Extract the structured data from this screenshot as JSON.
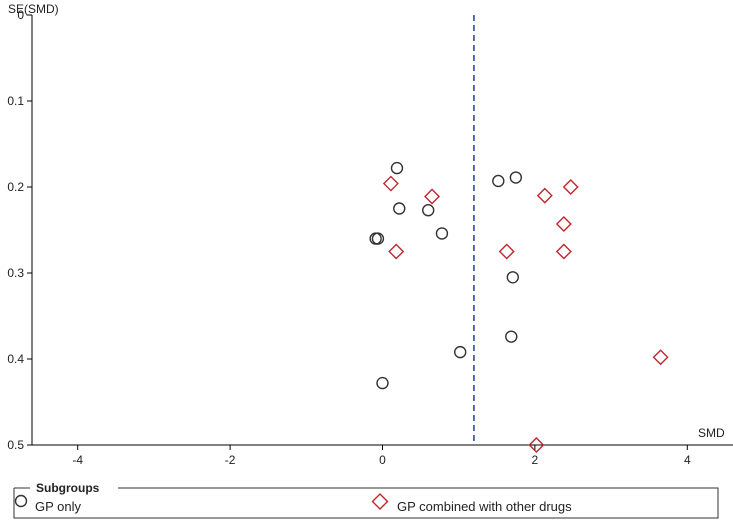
{
  "chart_data": {
    "type": "scatter",
    "title": "",
    "xlabel": "SMD",
    "ylabel": "SE(SMD)",
    "xlim": [
      -4.6,
      4.6
    ],
    "ylim": [
      0,
      0.5
    ],
    "y_reversed": true,
    "x_ticks": [
      -4,
      -2,
      0,
      2,
      4
    ],
    "x_tick_labels": [
      "-4",
      "-2",
      "0",
      "2",
      "4"
    ],
    "y_ticks": [
      0,
      0.1,
      0.2,
      0.3,
      0.4,
      0.5
    ],
    "y_tick_labels": [
      "0",
      "0.1",
      "0.2",
      "0.3",
      "0.4",
      "0.5"
    ],
    "reference_line": {
      "x": 1.2,
      "style": "dashed",
      "color": "#1f3aa6"
    },
    "legend": {
      "title": "Subgroups",
      "placement": "bottom"
    },
    "series": [
      {
        "name": "GP only",
        "marker": "circle",
        "color": "#333333",
        "points": [
          {
            "x": 0.19,
            "y": 0.178
          },
          {
            "x": 0.22,
            "y": 0.225
          },
          {
            "x": 0.6,
            "y": 0.227
          },
          {
            "x": 0.78,
            "y": 0.254
          },
          {
            "x": -0.09,
            "y": 0.26
          },
          {
            "x": -0.06,
            "y": 0.26
          },
          {
            "x": 1.52,
            "y": 0.193
          },
          {
            "x": 1.75,
            "y": 0.189
          },
          {
            "x": 1.71,
            "y": 0.305
          },
          {
            "x": 1.69,
            "y": 0.374
          },
          {
            "x": 1.02,
            "y": 0.392
          },
          {
            "x": 0.0,
            "y": 0.428
          }
        ]
      },
      {
        "name": "GP combined with other drugs",
        "marker": "diamond",
        "color": "#c0272d",
        "points": [
          {
            "x": 0.11,
            "y": 0.196
          },
          {
            "x": 0.65,
            "y": 0.211
          },
          {
            "x": 0.18,
            "y": 0.275
          },
          {
            "x": 2.13,
            "y": 0.21
          },
          {
            "x": 2.47,
            "y": 0.2
          },
          {
            "x": 2.38,
            "y": 0.243
          },
          {
            "x": 1.63,
            "y": 0.275
          },
          {
            "x": 2.38,
            "y": 0.275
          },
          {
            "x": 3.65,
            "y": 0.398
          },
          {
            "x": 2.02,
            "y": 0.5
          }
        ]
      }
    ]
  }
}
